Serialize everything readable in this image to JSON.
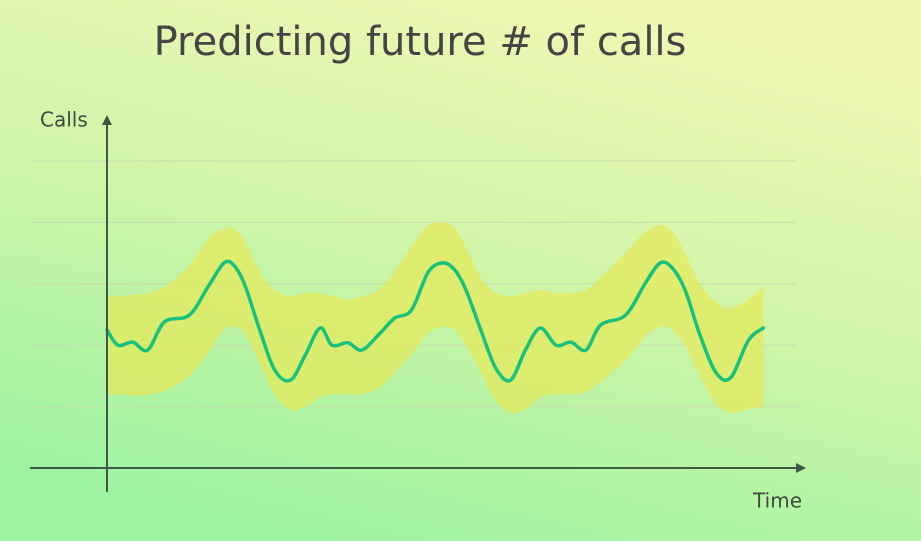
{
  "chart_data": {
    "type": "line",
    "title": "Predicting future # of calls",
    "y_label": "Calls",
    "x_label": "Time",
    "xlim": [
      0,
      70
    ],
    "ylim": [
      0,
      5.5
    ],
    "yticks": [
      1,
      2,
      3,
      4,
      5
    ],
    "grid": true,
    "color": "#18c27c",
    "band_color": "#e4ea5c",
    "x": [
      0,
      1.1,
      2.6,
      4.1,
      5.8,
      8.3,
      10.3,
      11.8,
      12.8,
      13.9,
      15.4,
      16.9,
      18.5,
      20,
      21.5,
      22.7,
      24.3,
      25.7,
      27.4,
      29,
      30.7,
      32.4,
      33.9,
      35.1,
      36.2,
      37.7,
      39.2,
      40.7,
      42.2,
      43.7,
      45.3,
      46.8,
      48.3,
      49.8,
      52.3,
      54.3,
      55.8,
      57,
      58.3,
      59.8,
      61.4,
      62.9,
      64.7,
      66.2
    ],
    "values": [
      2.25,
      2.0,
      2.05,
      1.92,
      2.38,
      2.49,
      2.98,
      3.34,
      3.3,
      2.98,
      2.25,
      1.6,
      1.43,
      1.84,
      2.28,
      2.0,
      2.04,
      1.92,
      2.17,
      2.44,
      2.57,
      3.19,
      3.34,
      3.22,
      2.9,
      2.25,
      1.63,
      1.43,
      1.92,
      2.28,
      2.0,
      2.05,
      1.92,
      2.33,
      2.49,
      3.01,
      3.34,
      3.26,
      2.9,
      2.17,
      1.56,
      1.47,
      2.08,
      2.28
    ],
    "upper": [
      2.8,
      2.8,
      2.82,
      2.85,
      2.95,
      3.3,
      3.75,
      3.9,
      3.88,
      3.7,
      3.2,
      2.9,
      2.8,
      2.85,
      2.85,
      2.8,
      2.75,
      2.8,
      2.9,
      3.2,
      3.6,
      3.95,
      4.0,
      3.9,
      3.6,
      3.1,
      2.85,
      2.8,
      2.85,
      2.9,
      2.85,
      2.85,
      2.9,
      3.1,
      3.5,
      3.85,
      3.95,
      3.85,
      3.5,
      3.0,
      2.7,
      2.6,
      2.75,
      2.95
    ],
    "lower": [
      1.2,
      1.2,
      1.18,
      1.2,
      1.25,
      1.5,
      1.9,
      2.25,
      2.3,
      2.2,
      1.7,
      1.2,
      0.95,
      1.0,
      1.15,
      1.2,
      1.2,
      1.2,
      1.3,
      1.55,
      1.85,
      2.2,
      2.3,
      2.25,
      2.0,
      1.55,
      1.1,
      0.9,
      0.95,
      1.15,
      1.2,
      1.2,
      1.25,
      1.4,
      1.75,
      2.15,
      2.3,
      2.25,
      2.0,
      1.5,
      1.05,
      0.9,
      0.95,
      1.0
    ]
  }
}
